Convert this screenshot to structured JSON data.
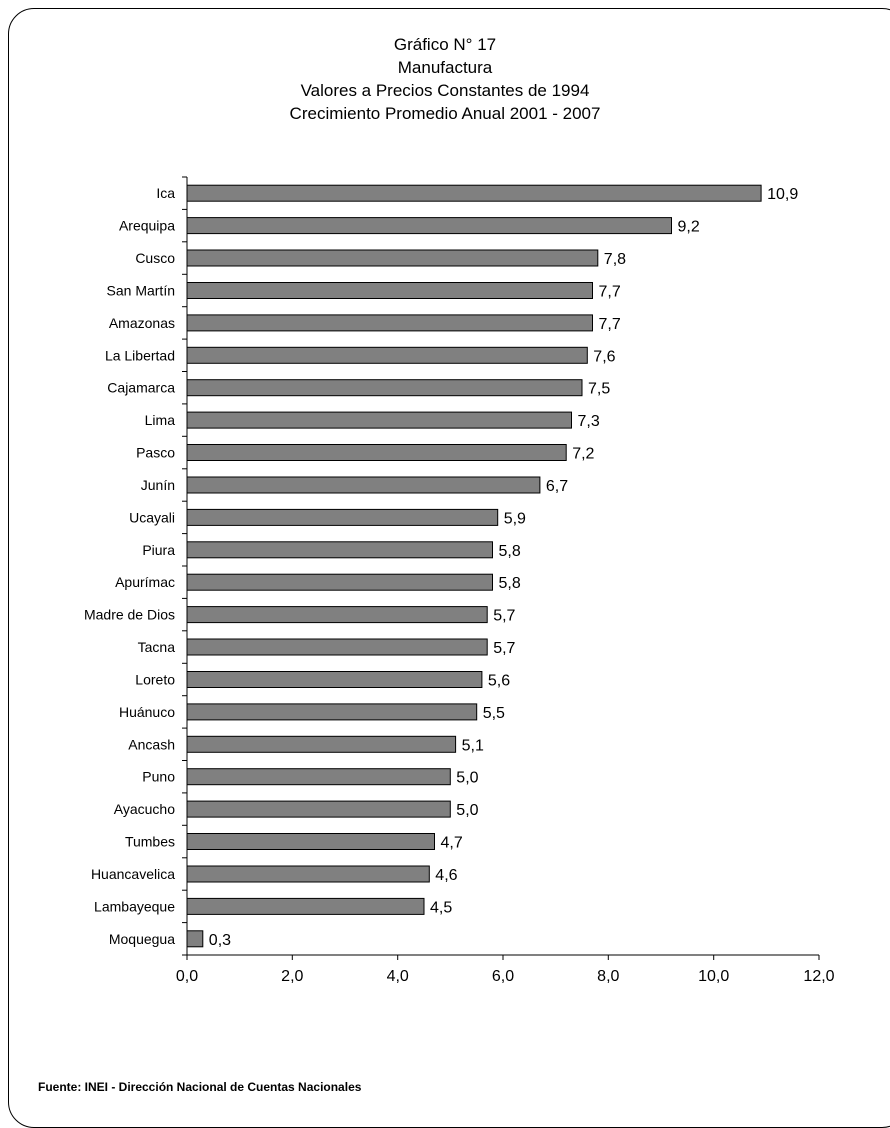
{
  "titles": [
    "Gráfico N° 17",
    "Manufactura",
    "Valores a Precios Constantes de 1994",
    "Crecimiento Promedio Anual 2001 - 2007"
  ],
  "source": "Fuente: INEI - Dirección Nacional de Cuentas Nacionales",
  "colors": {
    "bar": "#808080",
    "bar_stroke": "#000000",
    "axis": "#000000"
  },
  "chart_data": {
    "type": "bar",
    "orientation": "horizontal",
    "categories": [
      "Ica",
      "Arequipa",
      "Cusco",
      "San Martín",
      "Amazonas",
      "La Libertad",
      "Cajamarca",
      "Lima",
      "Pasco",
      "Junín",
      "Ucayali",
      "Piura",
      "Apurímac",
      "Madre de Dios",
      "Tacna",
      "Loreto",
      "Huánuco",
      "Ancash",
      "Puno",
      "Ayacucho",
      "Tumbes",
      "Huancavelica",
      "Lambayeque",
      "Moquegua"
    ],
    "values": [
      10.9,
      9.2,
      7.8,
      7.7,
      7.7,
      7.6,
      7.5,
      7.3,
      7.2,
      6.7,
      5.9,
      5.8,
      5.8,
      5.7,
      5.7,
      5.6,
      5.5,
      5.1,
      5.0,
      5.0,
      4.7,
      4.6,
      4.5,
      0.3
    ],
    "value_labels": [
      "10,9",
      "9,2",
      "7,8",
      "7,7",
      "7,7",
      "7,6",
      "7,5",
      "7,3",
      "7,2",
      "6,7",
      "5,9",
      "5,8",
      "5,8",
      "5,7",
      "5,7",
      "5,6",
      "5,5",
      "5,1",
      "5,0",
      "5,0",
      "4,7",
      "4,6",
      "4,5",
      "0,3"
    ],
    "xlim": [
      0,
      12
    ],
    "xticks": [
      "0,0",
      "2,0",
      "4,0",
      "6,0",
      "8,0",
      "10,0",
      "12,0"
    ],
    "grid": false,
    "legend": "none"
  }
}
